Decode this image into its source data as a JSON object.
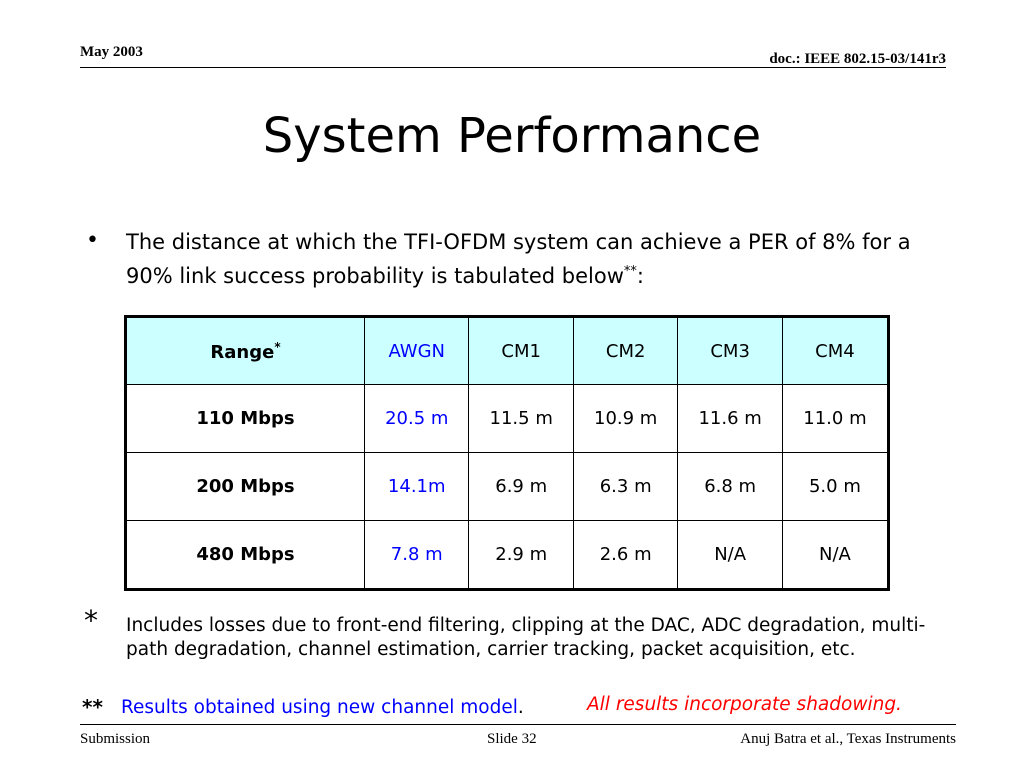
{
  "header": {
    "date": "May 2003",
    "doc_id": "doc.: IEEE 802.15-03/141r3"
  },
  "title": "System Performance",
  "bullet": {
    "symbol": "•",
    "text": "The distance at which the TFI-OFDM system can achieve a PER of 8% for a 90% link success probability is tabulated below",
    "suffix_sup": "**",
    "suffix_end": ":"
  },
  "table": {
    "header": {
      "range_label": "Range",
      "range_sup": "*",
      "columns": [
        "AWGN",
        "CM1",
        "CM2",
        "CM3",
        "CM4"
      ]
    },
    "rows": [
      {
        "rate": "110 Mbps",
        "values": [
          "20.5 m",
          "11.5 m",
          "10.9 m",
          "11.6 m",
          "11.0 m"
        ]
      },
      {
        "rate": "200 Mbps",
        "values": [
          "14.1m",
          "6.9 m",
          "6.3 m",
          "6.8 m",
          "5.0 m"
        ]
      },
      {
        "rate": "480 Mbps",
        "values": [
          "7.8 m",
          "2.9 m",
          "2.6 m",
          "N/A",
          "N/A"
        ]
      }
    ],
    "colors": {
      "header_bg": "#ccffff",
      "awgn_text": "#0000ff"
    }
  },
  "footnotes": {
    "fn1_mark": "*",
    "fn1_text": "Includes losses due to front-end filtering, clipping at the DAC, ADC degradation, multi-path degradation, channel estimation, carrier tracking, packet acquisition, etc.",
    "fn2_mark": "**",
    "fn2_text": "Results obtained using new channel model",
    "fn2_period": ".",
    "shadowing_note": "All results incorporate shadowing."
  },
  "footer": {
    "left": "Submission",
    "center": "Slide 32",
    "right": "Anuj Batra et al., Texas Instruments"
  }
}
